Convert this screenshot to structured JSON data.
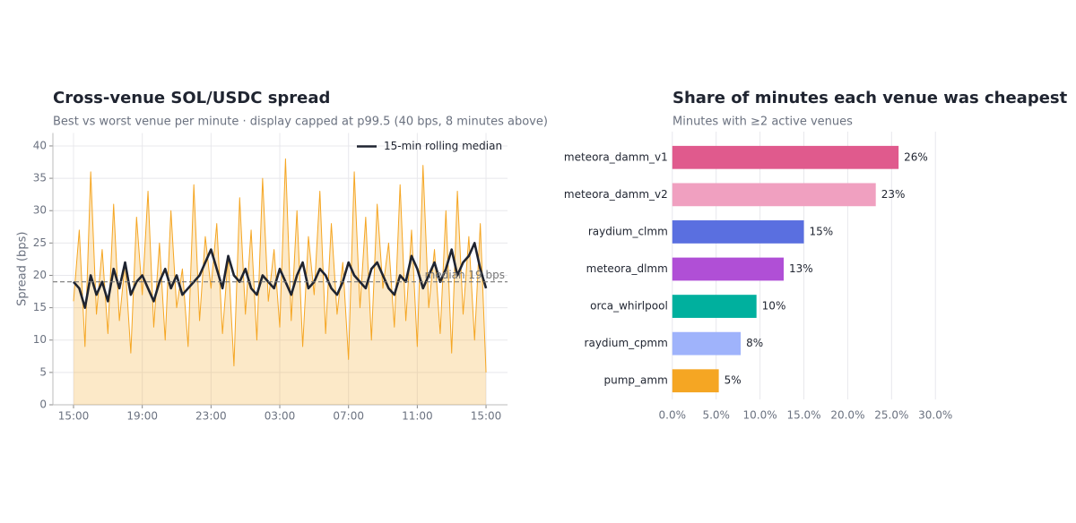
{
  "chart_data": [
    {
      "type": "line",
      "title": "Cross-venue SOL/USDC spread",
      "subtitle": "Best vs worst venue per minute · display capped at p99.5 (40 bps, 8 minutes above)",
      "ylabel": "Spread (bps)",
      "x": [
        0,
        20,
        40,
        60,
        80,
        100,
        120,
        140,
        160,
        180,
        200,
        220,
        240,
        260,
        280,
        300,
        320,
        340,
        360,
        380,
        400,
        420,
        440,
        460,
        480,
        500,
        520,
        540,
        560,
        580,
        600,
        620,
        640,
        660,
        680,
        700,
        720,
        740,
        760,
        780,
        800,
        820,
        840,
        860,
        880,
        900,
        920,
        940,
        960,
        980,
        1000,
        1020,
        1040,
        1060,
        1080,
        1100,
        1120,
        1140,
        1160,
        1180,
        1200,
        1220,
        1240,
        1260,
        1280,
        1300,
        1320,
        1340,
        1360,
        1380,
        1400,
        1420,
        1440
      ],
      "series": [
        {
          "color": "#f5a623",
          "fill": true,
          "values": [
            16,
            27,
            9,
            36,
            14,
            24,
            11,
            31,
            13,
            22,
            8,
            29,
            17,
            33,
            12,
            25,
            10,
            30,
            15,
            21,
            9,
            34,
            13,
            26,
            18,
            28,
            11,
            23,
            6,
            32,
            14,
            27,
            10,
            35,
            16,
            24,
            12,
            38,
            13,
            30,
            9,
            26,
            17,
            33,
            11,
            28,
            14,
            22,
            7,
            36,
            15,
            29,
            10,
            31,
            18,
            25,
            12,
            34,
            13,
            27,
            9,
            37,
            15,
            24,
            11,
            30,
            8,
            33,
            14,
            26,
            10,
            28,
            5
          ]
        },
        {
          "name": "15-min rolling median",
          "color": "#1f2430",
          "values": [
            19,
            18,
            15,
            20,
            17,
            19,
            16,
            21,
            18,
            22,
            17,
            19,
            20,
            18,
            16,
            19,
            21,
            18,
            20,
            17,
            18,
            19,
            20,
            22,
            24,
            21,
            18,
            23,
            20,
            19,
            21,
            18,
            17,
            20,
            19,
            18,
            21,
            19,
            17,
            20,
            22,
            18,
            19,
            21,
            20,
            18,
            17,
            19,
            22,
            20,
            19,
            18,
            21,
            22,
            20,
            18,
            17,
            20,
            19,
            23,
            21,
            18,
            20,
            22,
            19,
            21,
            24,
            20,
            22,
            23,
            25,
            21,
            18
          ]
        }
      ],
      "hline": {
        "value": 19,
        "label": "median 19 bps",
        "color": "#777777"
      },
      "xlim": [
        -72,
        1515
      ],
      "xticks": [
        {
          "value": 0,
          "label": "15:00"
        },
        {
          "value": 240,
          "label": "19:00"
        },
        {
          "value": 480,
          "label": "23:00"
        },
        {
          "value": 720,
          "label": "03:00"
        },
        {
          "value": 960,
          "label": "07:00"
        },
        {
          "value": 1200,
          "label": "11:00"
        },
        {
          "value": 1440,
          "label": "15:00"
        }
      ],
      "ylim": [
        0,
        42
      ],
      "yticks": [
        0,
        5,
        10,
        15,
        20,
        25,
        30,
        35,
        40
      ],
      "grid": true,
      "legend": "upper right"
    },
    {
      "type": "bar",
      "orientation": "horizontal",
      "title": "Share of minutes each venue was cheapest",
      "subtitle": "Minutes with ≥2 active venues",
      "categories": [
        "meteora_damm_v1",
        "meteora_damm_v2",
        "raydium_clmm",
        "meteora_dlmm",
        "orca_whirlpool",
        "raydium_cpmm",
        "pump_amm"
      ],
      "values": [
        25.8,
        23.2,
        15.0,
        12.7,
        9.6,
        7.8,
        5.3
      ],
      "value_labels": [
        "26%",
        "23%",
        "15%",
        "13%",
        "10%",
        "8%",
        "5%"
      ],
      "colors": [
        "#e05a8d",
        "#f0a0c0",
        "#5a6fe0",
        "#b04fd6",
        "#00b09e",
        "#9fb3fb",
        "#f5a623"
      ],
      "xlim": [
        -1,
        31
      ],
      "xticks": [
        {
          "value": 0,
          "label": "0.0%"
        },
        {
          "value": 5,
          "label": "5.0%"
        },
        {
          "value": 10,
          "label": "10.0%"
        },
        {
          "value": 15,
          "label": "15.0%"
        },
        {
          "value": 20,
          "label": "20.0%"
        },
        {
          "value": 25,
          "label": "25.0%"
        },
        {
          "value": 30,
          "label": "30.0%"
        }
      ],
      "grid": true
    }
  ]
}
